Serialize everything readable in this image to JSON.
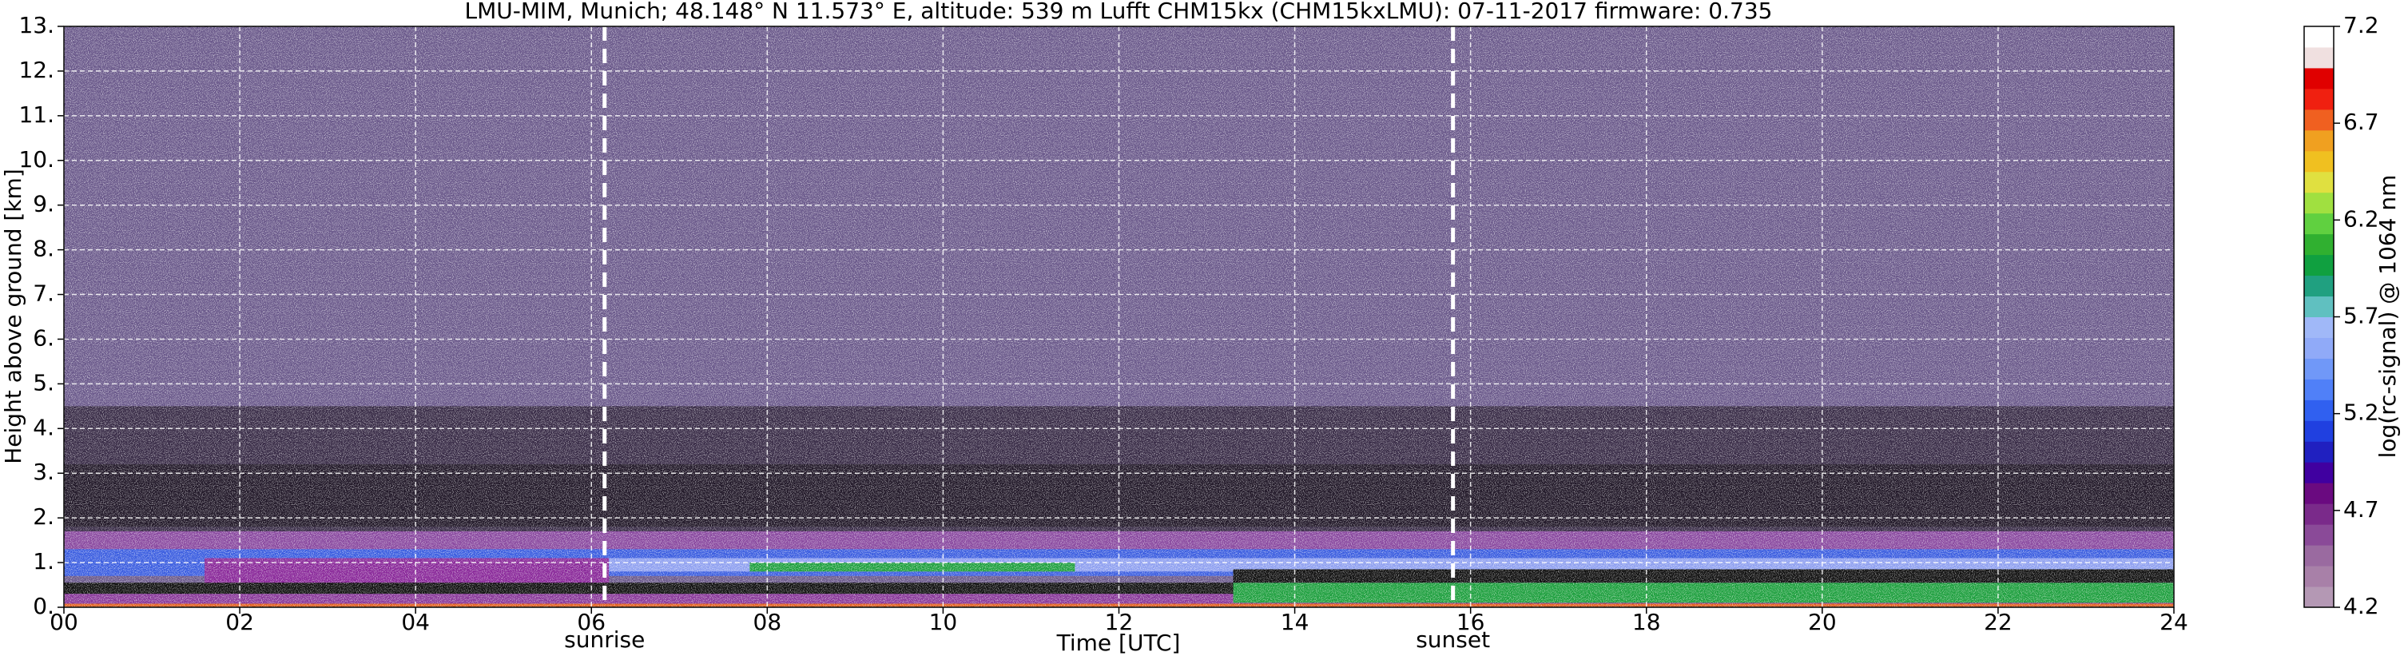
{
  "chart_data": {
    "type": "heatmap",
    "title": "LMU-MIM, Munich; 48.148° N 11.573° E, altitude: 539 m    Lufft CHM15kx (CHM15kxLMU): 07-11-2017    firmware: 0.735",
    "x_label": "Time [UTC]",
    "y_label": "Height above ground [km]",
    "xlim": [
      0,
      24
    ],
    "ylim": [
      0,
      13
    ],
    "xticks": [
      {
        "value": 0,
        "label": "00"
      },
      {
        "value": 2,
        "label": "02"
      },
      {
        "value": 4,
        "label": "04"
      },
      {
        "value": 6,
        "label": "06"
      },
      {
        "value": 8,
        "label": "08"
      },
      {
        "value": 10,
        "label": "10"
      },
      {
        "value": 12,
        "label": "12"
      },
      {
        "value": 14,
        "label": "14"
      },
      {
        "value": 16,
        "label": "16"
      },
      {
        "value": 18,
        "label": "18"
      },
      {
        "value": 20,
        "label": "20"
      },
      {
        "value": 22,
        "label": "22"
      },
      {
        "value": 24,
        "label": "24"
      }
    ],
    "yticks": [
      {
        "value": 0,
        "label": "0."
      },
      {
        "value": 1,
        "label": "1."
      },
      {
        "value": 2,
        "label": "2."
      },
      {
        "value": 3,
        "label": "3."
      },
      {
        "value": 4,
        "label": "4."
      },
      {
        "value": 5,
        "label": "5."
      },
      {
        "value": 6,
        "label": "6."
      },
      {
        "value": 7,
        "label": "7."
      },
      {
        "value": 8,
        "label": "8."
      },
      {
        "value": 9,
        "label": "9."
      },
      {
        "value": 10,
        "label": "10."
      },
      {
        "value": 11,
        "label": "11."
      },
      {
        "value": 12,
        "label": "12."
      },
      {
        "value": 13,
        "label": "13."
      }
    ],
    "grid": true,
    "annotations": [
      {
        "text": "sunrise",
        "x": 6.15
      },
      {
        "text": "sunset",
        "x": 15.8
      }
    ],
    "field": [
      {
        "x": [
          0,
          24
        ],
        "y": [
          0,
          13
        ],
        "color": "#6c5b8c"
      },
      {
        "x": [
          0,
          24
        ],
        "y": [
          1.5,
          4.5
        ],
        "color": "#3a2d48"
      },
      {
        "x": [
          0,
          24
        ],
        "y": [
          1.8,
          3.2
        ],
        "color": "#231a2a"
      },
      {
        "x": [
          0,
          24
        ],
        "y": [
          1.0,
          1.7
        ],
        "color": "#8a4aa0"
      },
      {
        "x": [
          0,
          24
        ],
        "y": [
          0.7,
          1.3
        ],
        "color": "#3d5fe0"
      },
      {
        "x": [
          1.6,
          6.2
        ],
        "y": [
          0.5,
          1.1
        ],
        "color": "#8a2a9a"
      },
      {
        "x": [
          6.2,
          24
        ],
        "y": [
          0.8,
          1.1
        ],
        "color": "#8fa0f0"
      },
      {
        "x": [
          7.8,
          11.5
        ],
        "y": [
          0.8,
          1.0
        ],
        "color": "#20a040"
      },
      {
        "x": [
          0,
          13.3
        ],
        "y": [
          0.3,
          0.55
        ],
        "color": "#111111"
      },
      {
        "x": [
          0,
          24
        ],
        "y": [
          0.05,
          0.3
        ],
        "color": "#8a3a9a"
      },
      {
        "x": [
          13.3,
          24
        ],
        "y": [
          0.1,
          0.55
        ],
        "color": "#20a040"
      },
      {
        "x": [
          13.3,
          24
        ],
        "y": [
          0.55,
          0.85
        ],
        "color": "#111111"
      },
      {
        "x": [
          0,
          24
        ],
        "y": [
          0,
          0.08
        ],
        "color": "#e06020"
      }
    ],
    "colorbar": {
      "label": "log(rc-signal) @ 1064 nm",
      "lim": [
        4.2,
        7.2
      ],
      "ticks": [
        4.2,
        4.7,
        5.2,
        5.7,
        6.2,
        6.7,
        7.2
      ],
      "colors": [
        "#b498b4",
        "#a880a8",
        "#9a6aa0",
        "#8a4a98",
        "#7a2a8a",
        "#6a0a80",
        "#4000a0",
        "#2020c0",
        "#2040e0",
        "#3060f0",
        "#5080f8",
        "#7098f8",
        "#90aaf8",
        "#a0b8f8",
        "#60c0c0",
        "#20a080",
        "#10a040",
        "#30b030",
        "#60d040",
        "#a0e040",
        "#e0e040",
        "#f0c020",
        "#f0a020",
        "#f06020",
        "#f02010",
        "#e00000",
        "#f0e0e0",
        "#ffffff"
      ]
    }
  }
}
